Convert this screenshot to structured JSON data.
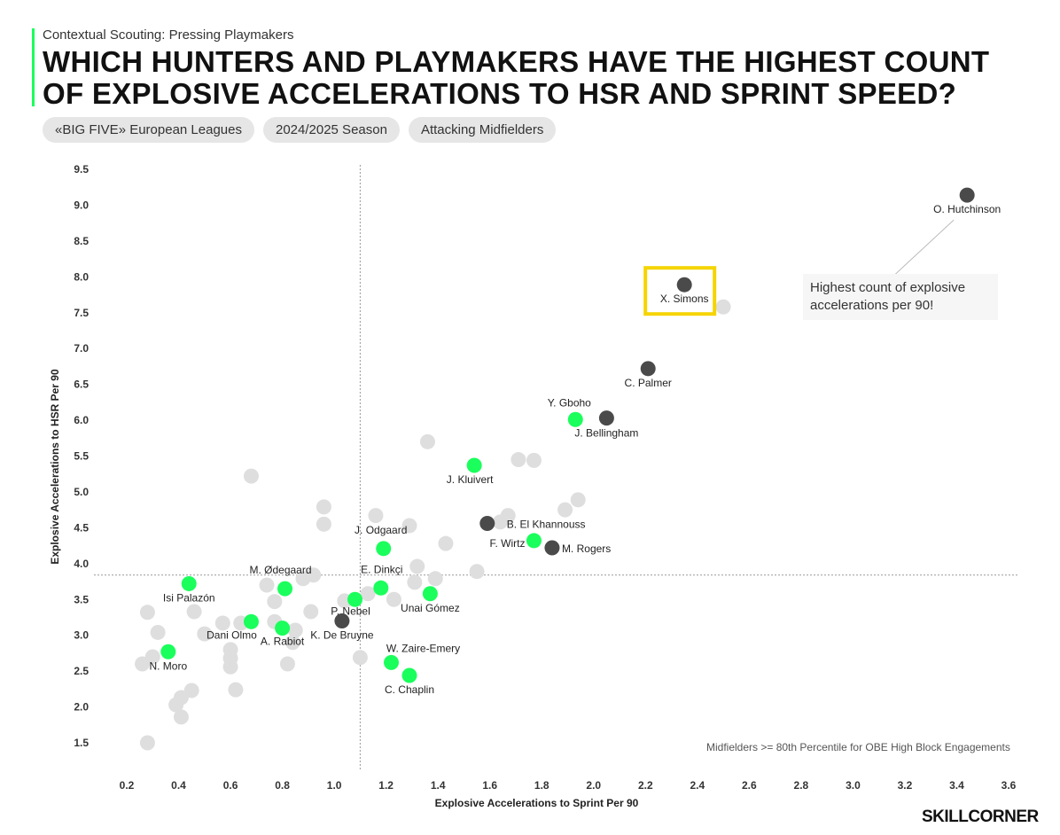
{
  "header": {
    "kicker": "Contextual Scouting: Pressing Playmakers",
    "title": "Which Hunters and Playmakers Have the Highest Count of Explosive Accelerations to HSR and Sprint Speed?",
    "chips": [
      "«BIG FIVE» European Leagues",
      "2024/2025 Season",
      "Attacking Midfielders"
    ]
  },
  "annotation": "Highest count of explosive accelerations per 90!",
  "footnote": "Midfielders >= 80th Percentile for OBE High Block Engagements",
  "brand": "SKILLCORNER",
  "colors": {
    "highlight": "#1aff5c",
    "dark": "#4a4a4a",
    "grey": "#dedede",
    "box": "#f5d400"
  },
  "chart_data": {
    "type": "scatter",
    "xlabel": "Explosive Accelerations to Sprint Per 90",
    "ylabel": "Explosive Accelerations to HSR Per 90",
    "xlim": [
      0.2,
      3.6
    ],
    "ylim": [
      1.5,
      9.5
    ],
    "x_ticks": [
      "0.2",
      "0.4",
      "0.6",
      "0.8",
      "1.0",
      "1.2",
      "1.4",
      "1.6",
      "1.8",
      "2.0",
      "2.2",
      "2.4",
      "2.6",
      "2.8",
      "3.0",
      "3.2",
      "3.4",
      "3.6"
    ],
    "y_ticks": [
      "1.5",
      "2.0",
      "2.5",
      "3.0",
      "3.5",
      "4.0",
      "4.5",
      "5.0",
      "5.5",
      "6.0",
      "6.5",
      "7.0",
      "7.5",
      "8.0",
      "8.5",
      "9.0",
      "9.5"
    ],
    "reference_lines": {
      "x": 1.1,
      "y": 3.84
    },
    "highlighted_point": "X. Simons",
    "labeled_points": [
      {
        "label": "O. Hutchinson",
        "x": 3.44,
        "y": 9.14,
        "group": "dark"
      },
      {
        "label": "X. Simons",
        "x": 2.35,
        "y": 7.89,
        "group": "dark"
      },
      {
        "label": "C. Palmer",
        "x": 2.21,
        "y": 6.72,
        "group": "dark"
      },
      {
        "label": "J. Bellingham",
        "x": 2.05,
        "y": 6.03,
        "group": "dark"
      },
      {
        "label": "Y. Gboho",
        "x": 1.93,
        "y": 6.01,
        "group": "green"
      },
      {
        "label": "J. Kluivert",
        "x": 1.54,
        "y": 5.37,
        "group": "green"
      },
      {
        "label": "B. El Khannouss",
        "x": 1.59,
        "y": 4.56,
        "group": "dark"
      },
      {
        "label": "F. Wirtz",
        "x": 1.77,
        "y": 4.32,
        "group": "green"
      },
      {
        "label": "M. Rogers",
        "x": 1.84,
        "y": 4.22,
        "group": "dark"
      },
      {
        "label": "J. Odgaard",
        "x": 1.19,
        "y": 4.21,
        "group": "green"
      },
      {
        "label": "E. Dinkçi",
        "x": 1.18,
        "y": 3.66,
        "group": "green"
      },
      {
        "label": "M. Ødegaard",
        "x": 0.81,
        "y": 3.65,
        "group": "green"
      },
      {
        "label": "Isi Palazón",
        "x": 0.44,
        "y": 3.72,
        "group": "green"
      },
      {
        "label": "Unai Gómez",
        "x": 1.37,
        "y": 3.58,
        "group": "green"
      },
      {
        "label": "P. Nebel",
        "x": 1.08,
        "y": 3.5,
        "group": "green"
      },
      {
        "label": "K. De Bruyne",
        "x": 1.03,
        "y": 3.2,
        "group": "dark"
      },
      {
        "label": "Dani Olmo",
        "x": 0.68,
        "y": 3.19,
        "group": "green"
      },
      {
        "label": "A. Rabiot",
        "x": 0.8,
        "y": 3.1,
        "group": "green"
      },
      {
        "label": "N. Moro",
        "x": 0.36,
        "y": 2.77,
        "group": "green"
      },
      {
        "label": "W. Zaire-Emery",
        "x": 1.22,
        "y": 2.62,
        "group": "green"
      },
      {
        "label": "C. Chaplin",
        "x": 1.29,
        "y": 2.44,
        "group": "green"
      }
    ],
    "other_points": [
      [
        2.5,
        7.58
      ],
      [
        1.36,
        5.7
      ],
      [
        1.71,
        5.45
      ],
      [
        1.77,
        5.44
      ],
      [
        0.68,
        5.22
      ],
      [
        1.94,
        4.89
      ],
      [
        1.89,
        4.75
      ],
      [
        0.96,
        4.79
      ],
      [
        1.16,
        4.67
      ],
      [
        1.67,
        4.67
      ],
      [
        1.64,
        4.58
      ],
      [
        0.96,
        4.55
      ],
      [
        1.29,
        4.53
      ],
      [
        1.43,
        4.28
      ],
      [
        1.32,
        3.96
      ],
      [
        1.55,
        3.89
      ],
      [
        0.88,
        3.79
      ],
      [
        0.92,
        3.84
      ],
      [
        1.39,
        3.79
      ],
      [
        1.31,
        3.74
      ],
      [
        0.74,
        3.7
      ],
      [
        0.77,
        3.47
      ],
      [
        1.13,
        3.58
      ],
      [
        1.23,
        3.5
      ],
      [
        1.04,
        3.48
      ],
      [
        0.46,
        3.33
      ],
      [
        0.91,
        3.33
      ],
      [
        0.28,
        3.32
      ],
      [
        0.57,
        3.17
      ],
      [
        0.64,
        3.17
      ],
      [
        0.77,
        3.19
      ],
      [
        0.85,
        3.07
      ],
      [
        0.5,
        3.02
      ],
      [
        0.32,
        3.04
      ],
      [
        0.84,
        2.9
      ],
      [
        0.6,
        2.8
      ],
      [
        0.3,
        2.7
      ],
      [
        0.6,
        2.68
      ],
      [
        1.1,
        2.69
      ],
      [
        0.26,
        2.6
      ],
      [
        0.6,
        2.56
      ],
      [
        0.82,
        2.6
      ],
      [
        0.62,
        2.24
      ],
      [
        0.45,
        2.23
      ],
      [
        0.41,
        2.13
      ],
      [
        0.39,
        2.03
      ],
      [
        0.41,
        1.86
      ],
      [
        0.28,
        1.5
      ]
    ]
  }
}
